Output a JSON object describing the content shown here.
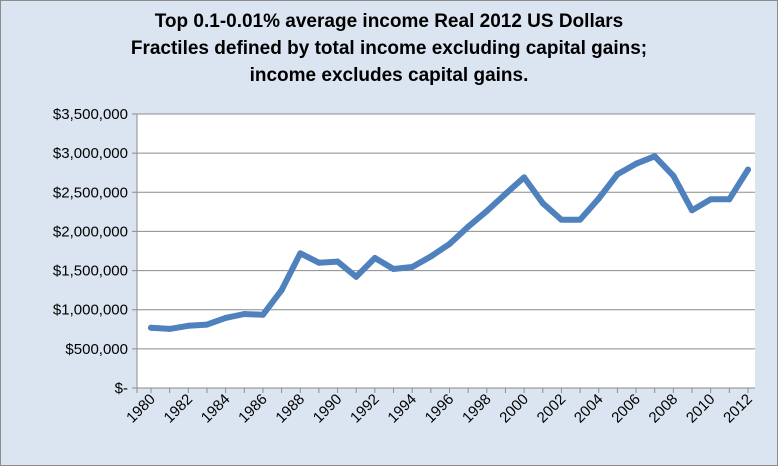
{
  "colors": {
    "background": "#dbe5f1",
    "plot_area": "#ffffff",
    "gridline": "#8c8c8c",
    "series": "#4f81bd"
  },
  "chart_data": {
    "type": "line",
    "title_lines": [
      "Top 0.1-0.01% average income Real 2012 US Dollars",
      "Fractiles defined by total income excluding capital gains;",
      "income excludes capital gains."
    ],
    "xlabel": "",
    "ylabel": "",
    "ylim": [
      0,
      3500000
    ],
    "grid": true,
    "legend": "none",
    "y_ticks": [
      {
        "value": 0,
        "label": "$-"
      },
      {
        "value": 500000,
        "label": "$500,000"
      },
      {
        "value": 1000000,
        "label": "$1,000,000"
      },
      {
        "value": 1500000,
        "label": "$1,500,000"
      },
      {
        "value": 2000000,
        "label": "$2,000,000"
      },
      {
        "value": 2500000,
        "label": "$2,500,000"
      },
      {
        "value": 3000000,
        "label": "$3,000,000"
      },
      {
        "value": 3500000,
        "label": "$3,500,000"
      }
    ],
    "x_tick_labels": [
      "1980",
      "1982",
      "1984",
      "1986",
      "1988",
      "1990",
      "1992",
      "1994",
      "1996",
      "1998",
      "2000",
      "2002",
      "2004",
      "2006",
      "2008",
      "2010",
      "2012"
    ],
    "x": [
      1980,
      1981,
      1982,
      1983,
      1984,
      1985,
      1986,
      1987,
      1988,
      1989,
      1990,
      1991,
      1992,
      1993,
      1994,
      1995,
      1996,
      1997,
      1998,
      1999,
      2000,
      2001,
      2002,
      2003,
      2004,
      2005,
      2006,
      2007,
      2008,
      2009,
      2010,
      2011,
      2012
    ],
    "series": [
      {
        "values": [
          770000,
          755000,
          795000,
          810000,
          895000,
          945000,
          935000,
          1250000,
          1720000,
          1600000,
          1615000,
          1420000,
          1660000,
          1520000,
          1545000,
          1680000,
          1840000,
          2060000,
          2260000,
          2480000,
          2690000,
          2360000,
          2150000,
          2150000,
          2420000,
          2730000,
          2865000,
          2960000,
          2710000,
          2270000,
          2410000,
          2410000,
          2790000
        ]
      }
    ]
  }
}
